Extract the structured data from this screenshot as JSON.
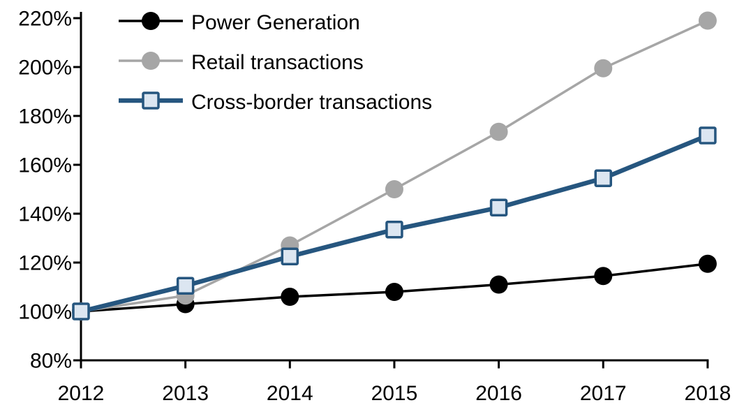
{
  "chart_data": {
    "type": "line",
    "title": "",
    "xlabel": "",
    "ylabel": "",
    "categories": [
      "2012",
      "2013",
      "2014",
      "2015",
      "2016",
      "2017",
      "2018"
    ],
    "y_ticks": [
      80,
      100,
      120,
      140,
      160,
      180,
      200,
      220
    ],
    "y_tick_labels": [
      "80%",
      "100%",
      "120%",
      "140%",
      "160%",
      "180%",
      "200%",
      "220%"
    ],
    "ylim": [
      80,
      220
    ],
    "grid": false,
    "legend_position": "top-left",
    "axis_color": "#000000",
    "series": [
      {
        "name": "Power Generation",
        "line_color": "#000000",
        "line_width": 3.5,
        "marker": "circle",
        "marker_fill": "#000000",
        "values": [
          100,
          103,
          106,
          108,
          111,
          114.5,
          119.5
        ]
      },
      {
        "name": "Retail transactions",
        "line_color": "#A6A6A6",
        "line_width": 3.5,
        "marker": "circle",
        "marker_fill": "#A6A6A6",
        "values": [
          100,
          106.5,
          127,
          150,
          173.5,
          199.5,
          219
        ]
      },
      {
        "name": "Cross-border transactions",
        "line_color": "#26567F",
        "line_width": 6.5,
        "marker": "square",
        "marker_fill": "#DCE6F1",
        "values": [
          100,
          110.5,
          122.5,
          133.5,
          142.5,
          154.5,
          172
        ]
      }
    ]
  }
}
